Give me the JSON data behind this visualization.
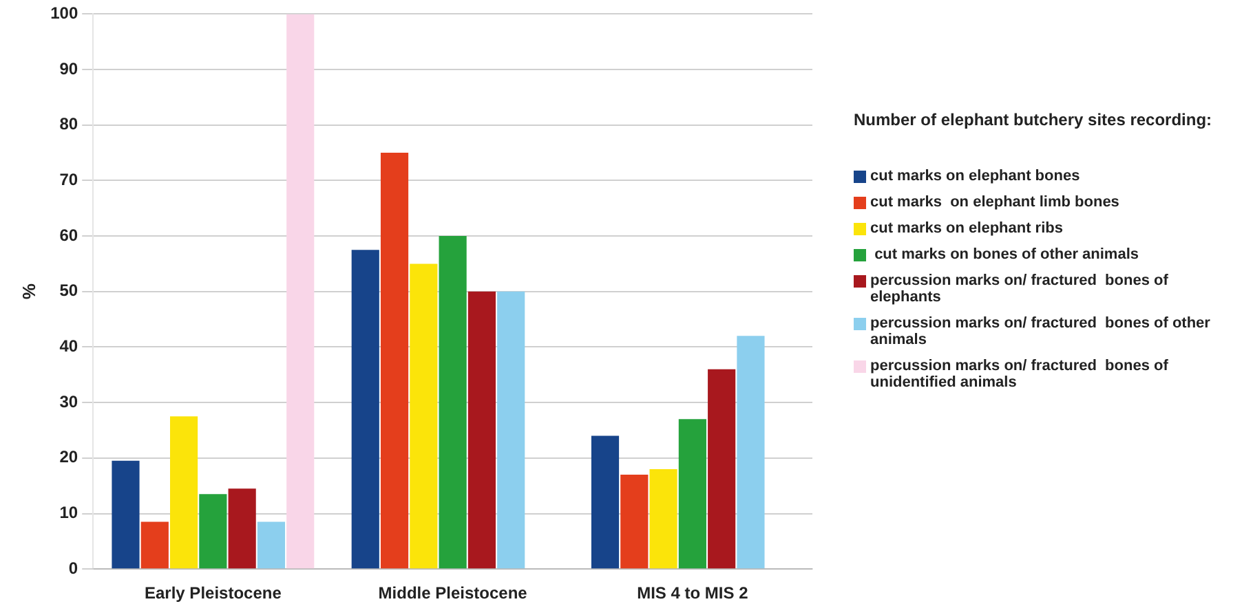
{
  "chart_data": {
    "type": "bar",
    "ylabel": "%",
    "legend_title": "Number of elephant butchery sites recording:",
    "categories": [
      "Early Pleistocene",
      "Middle Pleistocene",
      "MIS 4 to MIS 2"
    ],
    "ylim": [
      0,
      100
    ],
    "yticks": [
      0,
      10,
      20,
      30,
      40,
      50,
      60,
      70,
      80,
      90,
      100
    ],
    "grid": "y",
    "legend": "right",
    "series": [
      {
        "name": "cut marks on elephant bones",
        "color": "#17448a",
        "values": [
          19.5,
          57.5,
          24
        ]
      },
      {
        "name": "cut marks  on elephant limb bones",
        "color": "#e43e1c",
        "values": [
          8.5,
          75,
          17
        ]
      },
      {
        "name": "cut marks on elephant ribs",
        "color": "#fbe40a",
        "values": [
          27.5,
          55,
          18
        ]
      },
      {
        "name": " cut marks on bones of other animals",
        "color": "#25a23c",
        "values": [
          13.5,
          60,
          27
        ]
      },
      {
        "name": "percussion marks on/ fractured  bones of elephants",
        "color": "#a8181e",
        "values": [
          14.5,
          50,
          36
        ]
      },
      {
        "name": "percussion marks on/ fractured  bones of other animals",
        "color": "#8ccfee",
        "values": [
          8.5,
          50,
          42
        ]
      },
      {
        "name": "percussion marks on/ fractured  bones of unidentified animals",
        "color": "#f9d6e8",
        "values": [
          100,
          null,
          null
        ]
      }
    ]
  }
}
